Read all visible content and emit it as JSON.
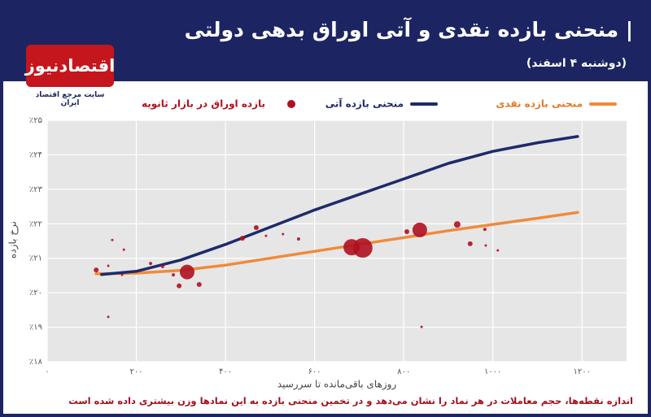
{
  "logo": {
    "name": "اقتصادنیوز",
    "tagline": "سایت مرجع اقتصاد ایران"
  },
  "chart_data": {
    "type": "line",
    "title": "| منحنی بازده نقدی و آتی اوراق بدهی دولتی",
    "subtitle": "(دوشنبه ۴ اسفند)",
    "x_label": "روزهای باقی‌مانده تا سررسید",
    "y_label": "نرخ بازده",
    "note": "اندازه نقطه‌ها، حجم معاملات در هر نماد را نشان می‌دهد و در تخمین منحنی بازده به این نمادها وزن بیشتری داده شده است",
    "xlim": [
      0,
      1300
    ],
    "ylim": [
      18,
      25
    ],
    "xticks": [
      {
        "value": 0,
        "label": "۰"
      },
      {
        "value": 200,
        "label": "۲۰۰"
      },
      {
        "value": 400,
        "label": "۴۰۰"
      },
      {
        "value": 600,
        "label": "۶۰۰"
      },
      {
        "value": 800,
        "label": "۸۰۰"
      },
      {
        "value": 1000,
        "label": "۱۰۰۰"
      },
      {
        "value": 1200,
        "label": "۱۲۰۰"
      }
    ],
    "yticks": [
      {
        "value": 18,
        "label": "٪۱۸"
      },
      {
        "value": 19,
        "label": "٪۱۹"
      },
      {
        "value": 20,
        "label": "٪۲۰"
      },
      {
        "value": 21,
        "label": "٪۲۱"
      },
      {
        "value": 22,
        "label": "٪۲۲"
      },
      {
        "value": 23,
        "label": "٪۲۳"
      },
      {
        "value": 24,
        "label": "٪۲۴"
      },
      {
        "value": 25,
        "label": "٪۲۵"
      }
    ],
    "grid": true,
    "series": [
      {
        "name": "منحنی بازده نقدی",
        "color": "#f08a3a",
        "type": "line",
        "x": [
          110,
          200,
          300,
          400,
          500,
          600,
          700,
          800,
          900,
          1000,
          1100,
          1190
        ],
        "values": [
          20.55,
          20.57,
          20.65,
          20.8,
          21.0,
          21.2,
          21.4,
          21.6,
          21.8,
          21.98,
          22.16,
          22.33
        ]
      },
      {
        "name": "منحنی بازده آتی",
        "color": "#1f2a6b",
        "type": "line",
        "x": [
          122,
          200,
          300,
          400,
          500,
          600,
          700,
          800,
          900,
          1000,
          1100,
          1190
        ],
        "values": [
          20.53,
          20.62,
          20.95,
          21.4,
          21.9,
          22.4,
          22.85,
          23.3,
          23.75,
          24.1,
          24.35,
          24.53
        ]
      },
      {
        "name": "بازده اوراق در بازار ثانویه",
        "color": "#b01020",
        "type": "scatter",
        "x": [
          110,
          137,
          146,
          172,
          137,
          168,
          232,
          259,
          283,
          296,
          314,
          341,
          438,
          469,
          491,
          529,
          564,
          683,
          708,
          807,
          836,
          840,
          920,
          949,
          982,
          984,
          1011
        ],
        "values": [
          20.66,
          20.78,
          21.53,
          21.25,
          19.3,
          20.52,
          20.85,
          20.76,
          20.52,
          20.2,
          20.6,
          20.24,
          21.58,
          21.89,
          21.65,
          21.7,
          21.56,
          21.32,
          21.3,
          21.77,
          21.82,
          19.01,
          21.98,
          21.42,
          21.84,
          21.37,
          21.23
        ],
        "sizes": [
          3,
          1.5,
          1.5,
          1.5,
          1.5,
          1.5,
          2,
          2,
          2,
          3,
          9,
          3,
          3,
          3,
          1.5,
          1.5,
          2,
          10,
          12,
          3,
          9,
          1.5,
          4,
          3,
          2,
          1.5,
          1.5
        ]
      }
    ]
  }
}
